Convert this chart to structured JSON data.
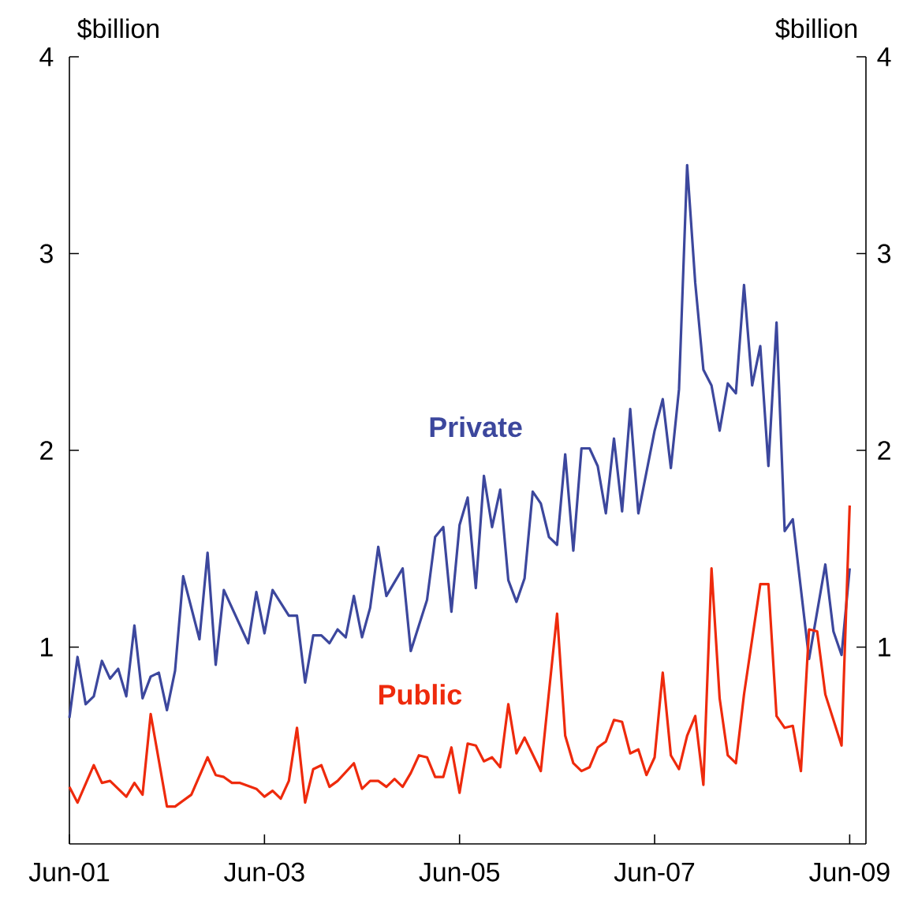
{
  "chart_data": {
    "type": "line",
    "ylabel": "$billion",
    "y2label": "$billion",
    "xlim": [
      "2001-06",
      "2009-08"
    ],
    "xticks": [
      {
        "value": "2001-06",
        "label": "Jun-01"
      },
      {
        "value": "2003-06",
        "label": "Jun-03"
      },
      {
        "value": "2005-06",
        "label": "Jun-05"
      },
      {
        "value": "2007-06",
        "label": "Jun-07"
      },
      {
        "value": "2009-06",
        "label": "Jun-09"
      }
    ],
    "ylim": [
      0,
      4
    ],
    "yticks": [
      1,
      2,
      3,
      4
    ],
    "y2lim": [
      0,
      4
    ],
    "y2ticks": [
      1,
      2,
      3,
      4
    ],
    "series": [
      {
        "name": "Private",
        "color": "#3c479d",
        "x": [
          "2001-06",
          "2001-07",
          "2001-08",
          "2001-09",
          "2001-10",
          "2001-11",
          "2001-12",
          "2002-01",
          "2002-02",
          "2002-03",
          "2002-04",
          "2002-05",
          "2002-06",
          "2002-07",
          "2002-08",
          "2002-10",
          "2002-11",
          "2002-12",
          "2003-01",
          "2003-02",
          "2003-04",
          "2003-05",
          "2003-06",
          "2003-07",
          "2003-09",
          "2003-10",
          "2003-11",
          "2003-12",
          "2004-01",
          "2004-02",
          "2004-03",
          "2004-04",
          "2004-05",
          "2004-06",
          "2004-07",
          "2004-08",
          "2004-09",
          "2004-10",
          "2004-11",
          "2004-12",
          "2005-01",
          "2005-02",
          "2005-03",
          "2005-04",
          "2005-05",
          "2005-06",
          "2005-07",
          "2005-08",
          "2005-09",
          "2005-10",
          "2005-11",
          "2005-12",
          "2006-01",
          "2006-02",
          "2006-03",
          "2006-04",
          "2006-05",
          "2006-06",
          "2006-07",
          "2006-08",
          "2006-09",
          "2006-10",
          "2006-11",
          "2006-12",
          "2007-01",
          "2007-02",
          "2007-03",
          "2007-04",
          "2007-06",
          "2007-07",
          "2007-08",
          "2007-09",
          "2007-10",
          "2007-11",
          "2007-12",
          "2008-01",
          "2008-02",
          "2008-03",
          "2008-04",
          "2008-05",
          "2008-06",
          "2008-07",
          "2008-08",
          "2008-09",
          "2008-10",
          "2008-11",
          "2009-01",
          "2009-02",
          "2009-03",
          "2009-04",
          "2009-05",
          "2009-06"
        ],
        "values": [
          0.64,
          0.95,
          0.71,
          0.75,
          0.93,
          0.84,
          0.89,
          0.75,
          1.11,
          0.74,
          0.85,
          0.87,
          0.68,
          0.88,
          1.36,
          1.04,
          1.48,
          0.91,
          1.29,
          1.2,
          1.02,
          1.28,
          1.07,
          1.29,
          1.16,
          1.16,
          0.82,
          1.06,
          1.06,
          1.02,
          1.09,
          1.05,
          1.26,
          1.05,
          1.2,
          1.51,
          1.26,
          1.33,
          1.4,
          0.98,
          1.11,
          1.24,
          1.56,
          1.61,
          1.18,
          1.62,
          1.76,
          1.3,
          1.87,
          1.61,
          1.8,
          1.34,
          1.23,
          1.35,
          1.79,
          1.73,
          1.56,
          1.52,
          1.98,
          1.49,
          2.01,
          2.01,
          1.92,
          1.68,
          2.06,
          1.69,
          2.21,
          1.68,
          2.1,
          2.26,
          1.91,
          2.31,
          3.45,
          2.85,
          2.41,
          2.33,
          2.1,
          2.34,
          2.29,
          2.84,
          2.33,
          2.53,
          1.92,
          2.65,
          1.59,
          1.65,
          0.94,
          1.18,
          1.42,
          1.08,
          0.96,
          1.4
        ]
      },
      {
        "name": "Public",
        "color": "#ee2a0c",
        "x": [
          "2001-06",
          "2001-07",
          "2001-09",
          "2001-10",
          "2001-11",
          "2002-01",
          "2002-02",
          "2002-03",
          "2002-04",
          "2002-06",
          "2002-07",
          "2002-09",
          "2002-11",
          "2002-12",
          "2003-01",
          "2003-02",
          "2003-03",
          "2003-05",
          "2003-06",
          "2003-07",
          "2003-08",
          "2003-09",
          "2003-10",
          "2003-11",
          "2003-12",
          "2004-01",
          "2004-02",
          "2004-03",
          "2004-05",
          "2004-06",
          "2004-07",
          "2004-08",
          "2004-09",
          "2004-10",
          "2004-11",
          "2004-12",
          "2005-01",
          "2005-02",
          "2005-03",
          "2005-04",
          "2005-05",
          "2005-06",
          "2005-07",
          "2005-08",
          "2005-09",
          "2005-10",
          "2005-11",
          "2005-12",
          "2006-01",
          "2006-02",
          "2006-04",
          "2006-06",
          "2006-07",
          "2006-08",
          "2006-09",
          "2006-10",
          "2006-11",
          "2006-12",
          "2007-01",
          "2007-02",
          "2007-03",
          "2007-04",
          "2007-05",
          "2007-06",
          "2007-07",
          "2007-08",
          "2007-09",
          "2007-10",
          "2007-11",
          "2007-12",
          "2008-01",
          "2008-02",
          "2008-03",
          "2008-04",
          "2008-05",
          "2008-07",
          "2008-08",
          "2008-09",
          "2008-10",
          "2008-11",
          "2008-12",
          "2009-01",
          "2009-02",
          "2009-03",
          "2009-05",
          "2009-06"
        ],
        "values": [
          0.29,
          0.21,
          0.4,
          0.31,
          0.32,
          0.24,
          0.31,
          0.25,
          0.66,
          0.19,
          0.19,
          0.25,
          0.44,
          0.35,
          0.34,
          0.31,
          0.31,
          0.28,
          0.24,
          0.27,
          0.23,
          0.32,
          0.59,
          0.21,
          0.38,
          0.4,
          0.29,
          0.32,
          0.41,
          0.28,
          0.32,
          0.32,
          0.29,
          0.33,
          0.29,
          0.36,
          0.45,
          0.44,
          0.34,
          0.34,
          0.49,
          0.26,
          0.51,
          0.5,
          0.42,
          0.44,
          0.39,
          0.71,
          0.46,
          0.54,
          0.37,
          1.17,
          0.55,
          0.41,
          0.37,
          0.39,
          0.49,
          0.52,
          0.63,
          0.62,
          0.46,
          0.48,
          0.35,
          0.44,
          0.87,
          0.45,
          0.38,
          0.55,
          0.65,
          0.3,
          1.4,
          0.74,
          0.45,
          0.41,
          0.76,
          1.32,
          1.32,
          0.65,
          0.59,
          0.6,
          0.37,
          1.09,
          1.08,
          0.76,
          0.5,
          1.72
        ]
      }
    ],
    "marker": "none",
    "line_style": "solid"
  }
}
